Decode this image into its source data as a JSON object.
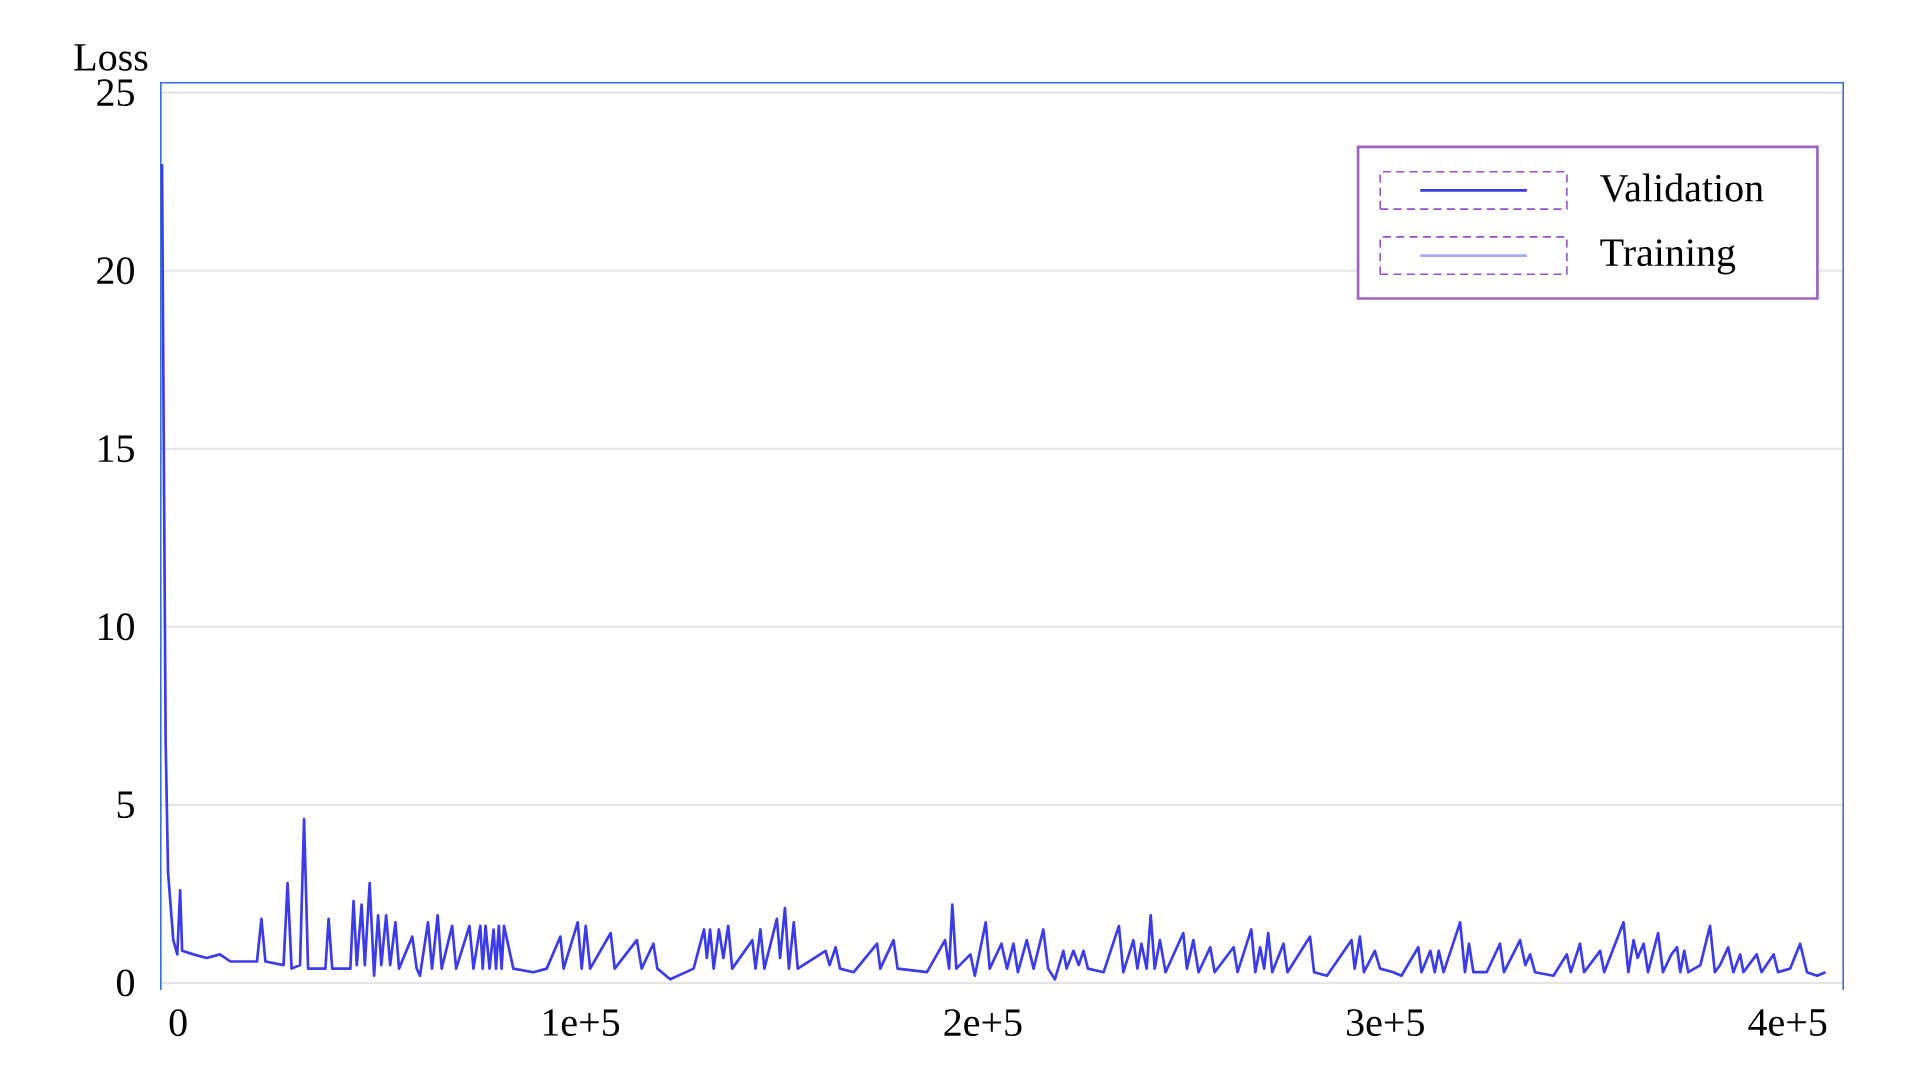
{
  "chart_data": {
    "type": "line",
    "ylabel": "Loss",
    "xlim": [
      -4500,
      414000
    ],
    "ylim": [
      -0.2,
      25.3
    ],
    "xticks": [
      0,
      {
        "value": 100000,
        "label": "1e+5"
      },
      {
        "value": 200000,
        "label": "2e+5"
      },
      {
        "value": 300000,
        "label": "3e+5"
      },
      {
        "value": 400000,
        "label": "4e+5"
      }
    ],
    "yticks": [
      0,
      5,
      10,
      15,
      20,
      25
    ],
    "grid": "y",
    "legend": "top right",
    "series": [
      {
        "name": "Validation",
        "color": "#3c3ce6",
        "x": [
          -4000,
          -3100,
          -2500,
          -1200,
          -200,
          500,
          1000,
          3800,
          7100,
          10400,
          13000,
          19600,
          20700,
          21700,
          26200,
          27200,
          28200,
          30300,
          31300,
          32300,
          36600,
          37400,
          38300,
          42800,
          43600,
          44400,
          45600,
          46400,
          47600,
          48700,
          49700,
          50500,
          51700,
          52700,
          54000,
          54900,
          58200,
          59300,
          60100,
          62100,
          63100,
          64500,
          65500,
          68100,
          69100,
          72400,
          73400,
          75100,
          75700,
          76400,
          77400,
          78400,
          79000,
          79700,
          80400,
          81000,
          83300,
          88300,
          91600,
          95000,
          95800,
          99300,
          100300,
          101300,
          102400,
          107500,
          108500,
          114000,
          115200,
          118100,
          119100,
          122300,
          128100,
          130700,
          131400,
          132200,
          133100,
          134400,
          135500,
          136700,
          137700,
          142700,
          143500,
          144700,
          145700,
          148800,
          149600,
          150800,
          151800,
          153000,
          154000,
          160900,
          161900,
          163400,
          164500,
          167900,
          173700,
          174500,
          177800,
          178800,
          186100,
          190600,
          191600,
          192400,
          193400,
          196900,
          198000,
          200700,
          201700,
          204600,
          206000,
          207600,
          208700,
          210900,
          212600,
          215000,
          216200,
          217900,
          220000,
          220800,
          222500,
          223800,
          225000,
          226100,
          230000,
          233800,
          234900,
          237400,
          238400,
          239400,
          240700,
          241700,
          242700,
          244000,
          245400,
          249800,
          250700,
          252300,
          253600,
          256500,
          257600,
          262300,
          263300,
          266700,
          267700,
          268900,
          269900,
          270900,
          271900,
          274700,
          275700,
          281300,
          282300,
          285500,
          291600,
          292400,
          293700,
          294700,
          297400,
          298700,
          302000,
          304000,
          308200,
          309000,
          311200,
          312300,
          313300,
          314500,
          318600,
          319800,
          320800,
          321900,
          325200,
          328500,
          329500,
          333500,
          334800,
          336000,
          337200,
          341800,
          345100,
          346100,
          348400,
          349400,
          353400,
          354400,
          359200,
          360400,
          361700,
          362700,
          364200,
          365300,
          367800,
          369000,
          371100,
          372500,
          373300,
          374300,
          375300,
          378300,
          380700,
          381900,
          383200,
          385200,
          386500,
          388200,
          389000,
          392300,
          393500,
          396500,
          397600,
          400600,
          403100,
          404800,
          407300,
          409400
        ],
        "values": [
          23.0,
          6.8,
          3.1,
          1.2,
          0.8,
          2.6,
          0.9,
          0.8,
          0.7,
          0.8,
          0.6,
          0.6,
          1.8,
          0.6,
          0.5,
          2.8,
          0.4,
          0.5,
          4.6,
          0.4,
          0.4,
          1.8,
          0.4,
          0.4,
          2.3,
          0.5,
          2.2,
          0.5,
          2.8,
          0.2,
          1.9,
          0.5,
          1.9,
          0.5,
          1.7,
          0.4,
          1.3,
          0.4,
          0.2,
          1.7,
          0.4,
          1.9,
          0.4,
          1.6,
          0.4,
          1.6,
          0.4,
          1.6,
          0.4,
          1.6,
          0.4,
          1.5,
          0.4,
          1.6,
          0.4,
          1.6,
          0.4,
          0.3,
          0.4,
          1.3,
          0.4,
          1.7,
          0.4,
          1.6,
          0.4,
          1.4,
          0.4,
          1.2,
          0.4,
          1.1,
          0.4,
          0.1,
          0.4,
          1.5,
          0.7,
          1.5,
          0.4,
          1.5,
          0.7,
          1.6,
          0.4,
          1.2,
          0.4,
          1.5,
          0.4,
          1.8,
          0.7,
          2.1,
          0.4,
          1.7,
          0.4,
          0.9,
          0.5,
          1.0,
          0.4,
          0.3,
          1.1,
          0.4,
          1.2,
          0.4,
          0.3,
          1.2,
          0.4,
          2.2,
          0.4,
          0.8,
          0.2,
          1.7,
          0.4,
          1.1,
          0.4,
          1.1,
          0.3,
          1.2,
          0.4,
          1.5,
          0.4,
          0.1,
          0.9,
          0.4,
          0.9,
          0.5,
          0.9,
          0.4,
          0.3,
          1.6,
          0.3,
          1.2,
          0.4,
          1.1,
          0.4,
          1.9,
          0.4,
          1.2,
          0.3,
          1.4,
          0.4,
          1.2,
          0.3,
          1.0,
          0.3,
          1.0,
          0.3,
          1.5,
          0.3,
          1.0,
          0.4,
          1.4,
          0.3,
          1.1,
          0.3,
          1.3,
          0.3,
          0.2,
          1.2,
          0.4,
          1.3,
          0.3,
          0.9,
          0.4,
          0.3,
          0.2,
          1.0,
          0.3,
          0.9,
          0.3,
          0.9,
          0.3,
          1.7,
          0.3,
          1.1,
          0.3,
          0.3,
          1.1,
          0.3,
          1.2,
          0.5,
          0.8,
          0.3,
          0.2,
          0.8,
          0.3,
          1.1,
          0.3,
          0.9,
          0.3,
          1.7,
          0.3,
          1.2,
          0.7,
          1.1,
          0.3,
          1.4,
          0.3,
          0.8,
          1.0,
          0.3,
          0.9,
          0.3,
          0.5,
          1.6,
          0.3,
          0.5,
          1.0,
          0.3,
          0.8,
          0.3,
          0.8,
          0.3,
          0.8,
          0.3,
          0.4,
          1.1,
          0.3,
          0.2,
          0.3
        ]
      },
      {
        "name": "Training",
        "color": "#a3aaf0"
      }
    ]
  }
}
